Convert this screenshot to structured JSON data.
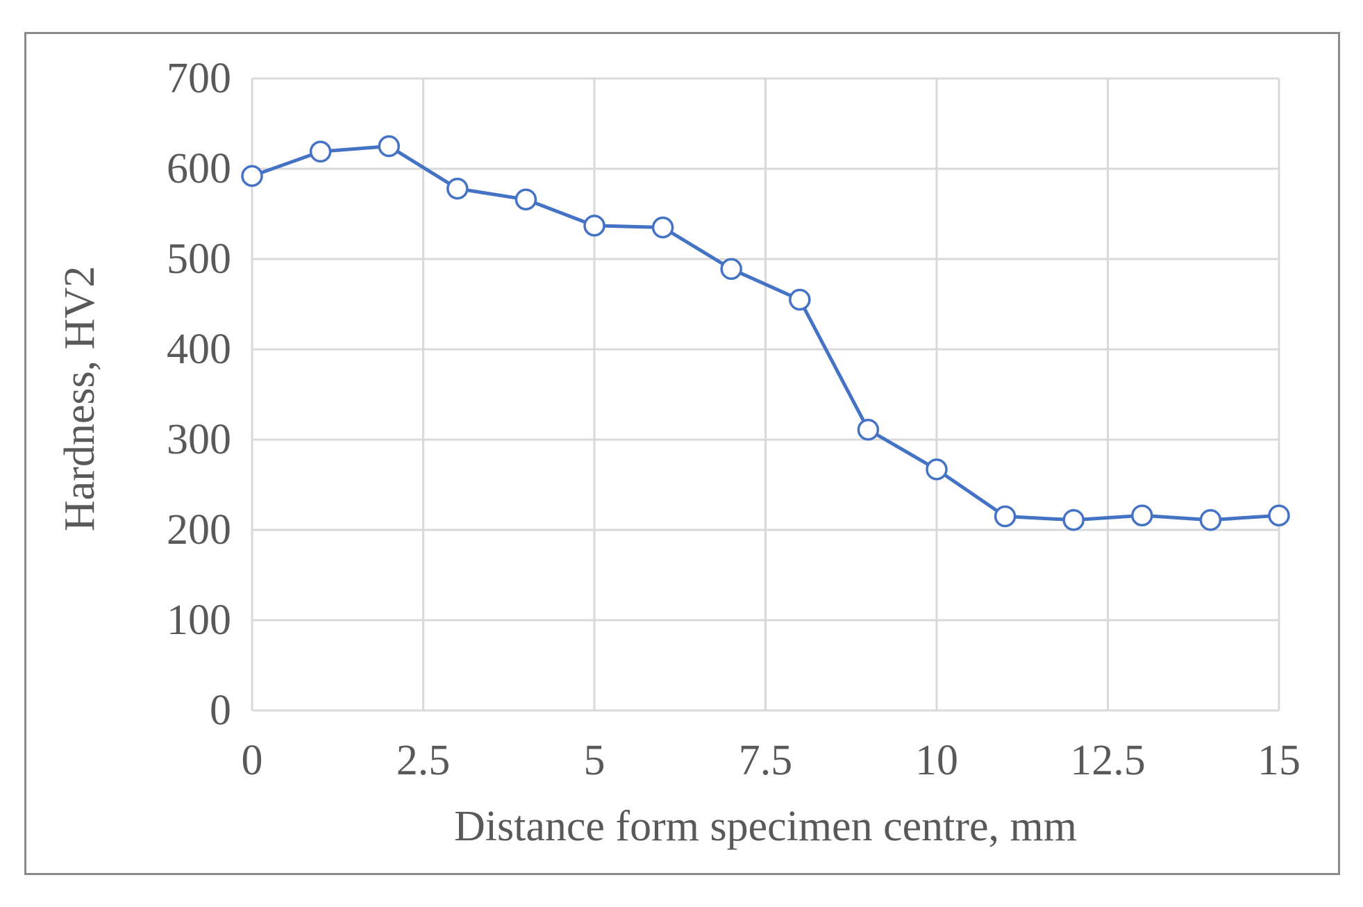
{
  "chart_data": {
    "type": "scatter",
    "title": "",
    "xlabel": "Distance form specimen centre, mm",
    "ylabel": "Hardness, HV2",
    "xlim": [
      0,
      15
    ],
    "ylim": [
      0,
      700
    ],
    "x_ticks": [
      "0",
      "2.5",
      "5",
      "7.5",
      "10",
      "12.5",
      "15"
    ],
    "x_tick_values": [
      0,
      2.5,
      5,
      7.5,
      10,
      12.5,
      15
    ],
    "y_ticks": [
      "0",
      "100",
      "200",
      "300",
      "400",
      "500",
      "600",
      "700"
    ],
    "y_tick_values": [
      0,
      100,
      200,
      300,
      400,
      500,
      600,
      700
    ],
    "grid": true,
    "legend": "none",
    "line_color": "#4472C4",
    "marker": "open-circle",
    "series": [
      {
        "x": [
          0,
          1,
          2,
          3,
          4,
          5,
          6,
          7,
          8,
          9,
          10,
          11,
          12,
          13,
          14,
          15
        ],
        "y": [
          592,
          619,
          625,
          578,
          566,
          537,
          535,
          489,
          455,
          311,
          267,
          215,
          211,
          216,
          211,
          216
        ]
      }
    ]
  }
}
